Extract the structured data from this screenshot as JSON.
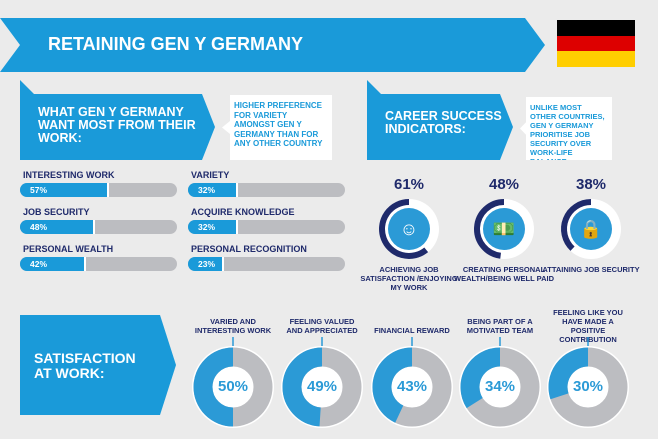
{
  "title": "RETAINING GEN Y GERMANY",
  "flag": {
    "colors": [
      "#000000",
      "#dd0000",
      "#ffce00"
    ]
  },
  "want": {
    "heading": "WHAT GEN Y GERMANY WANT MOST FROM THEIR WORK:",
    "callout": "HIGHER PREFERENCE FOR VARIETY AMONGST GEN Y GERMANY THAN FOR ANY OTHER COUNTRY",
    "items": [
      {
        "label": "INTERESTING WORK",
        "value": 57,
        "text": "57%"
      },
      {
        "label": "JOB SECURITY",
        "value": 48,
        "text": "48%"
      },
      {
        "label": "PERSONAL WEALTH",
        "value": 42,
        "text": "42%"
      },
      {
        "label": "VARIETY",
        "value": 32,
        "text": "32%"
      },
      {
        "label": "ACQUIRE KNOWLEDGE",
        "value": 32,
        "text": "32%"
      },
      {
        "label": "PERSONAL RECOGNITION",
        "value": 23,
        "text": "23%"
      }
    ]
  },
  "career": {
    "heading": "CAREER SUCCESS INDICATORS:",
    "callout": "UNLIKE MOST OTHER COUNTRIES, GEN Y GERMANY PRIORITISE JOB SECURITY OVER WORK-LIFE BALANCE",
    "items": [
      {
        "value": 61,
        "text": "61%",
        "label": "ACHIEVING JOB SATISFACTION /ENJOYING MY WORK",
        "icon": "smiley-icon"
      },
      {
        "value": 48,
        "text": "48%",
        "label": "CREATING PERSONAL WEALTH/BEING WELL PAID",
        "icon": "money-icon"
      },
      {
        "value": 38,
        "text": "38%",
        "label": "ATTAINING JOB SECURITY",
        "icon": "briefcase-lock-icon"
      }
    ]
  },
  "satisfaction": {
    "heading": "SATISFACTION AT WORK:",
    "items": [
      {
        "value": 50,
        "text": "50%",
        "label": "VARIED AND INTERESTING WORK"
      },
      {
        "value": 49,
        "text": "49%",
        "label": "FEELING VALUED AND APPRECIATED"
      },
      {
        "value": 43,
        "text": "43%",
        "label": "FINANCIAL REWARD"
      },
      {
        "value": 34,
        "text": "34%",
        "label": "BEING PART OF A MOTIVATED TEAM"
      },
      {
        "value": 30,
        "text": "30%",
        "label": "FEELING LIKE YOU HAVE MADE A POSITIVE CONTRIBUTION"
      }
    ]
  }
}
